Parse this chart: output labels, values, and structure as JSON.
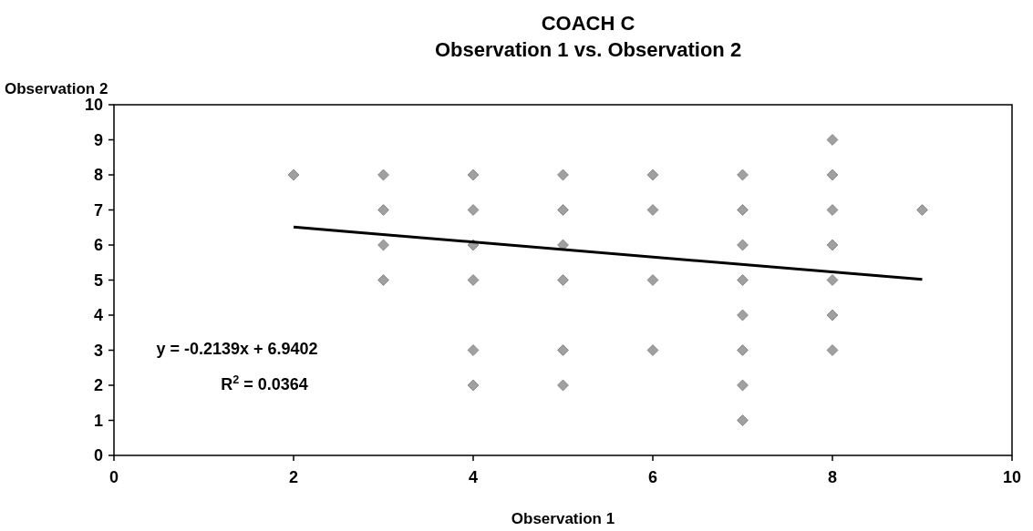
{
  "chart_data": {
    "type": "scatter",
    "title": "COACH C",
    "subtitle": "Observation 1 vs. Observation 2",
    "xlabel": "Observation 1",
    "ylabel": "Observation 2",
    "xlim": [
      0,
      10
    ],
    "xticks": [
      0,
      2,
      4,
      6,
      8,
      10
    ],
    "ylim": [
      0,
      10
    ],
    "yticks": [
      0,
      1,
      2,
      3,
      4,
      5,
      6,
      7,
      8,
      9,
      10
    ],
    "grid": false,
    "series": [
      {
        "color": "#a0a0a0",
        "marker": "diamond",
        "x": [
          2,
          3,
          3,
          3,
          3,
          4,
          4,
          4,
          4,
          4,
          4,
          5,
          5,
          5,
          5,
          5,
          5,
          6,
          6,
          6,
          6,
          7,
          7,
          7,
          7,
          7,
          7,
          7,
          7,
          8,
          8,
          8,
          8,
          8,
          8,
          8,
          9
        ],
        "values": [
          8,
          8,
          7,
          6,
          5,
          8,
          7,
          6,
          5,
          3,
          2,
          8,
          7,
          6,
          5,
          3,
          2,
          8,
          7,
          5,
          3,
          8,
          7,
          6,
          5,
          4,
          3,
          2,
          1,
          9,
          8,
          7,
          6,
          5,
          4,
          3,
          7
        ]
      },
      {
        "type": "line",
        "color": "#000000",
        "marker": "none",
        "x": [
          2,
          9
        ],
        "values": [
          6.51,
          5.02
        ]
      }
    ],
    "annotations": [
      "y = -0.2139x + 6.9402",
      "R$^{2}$ = 0.0364"
    ]
  }
}
